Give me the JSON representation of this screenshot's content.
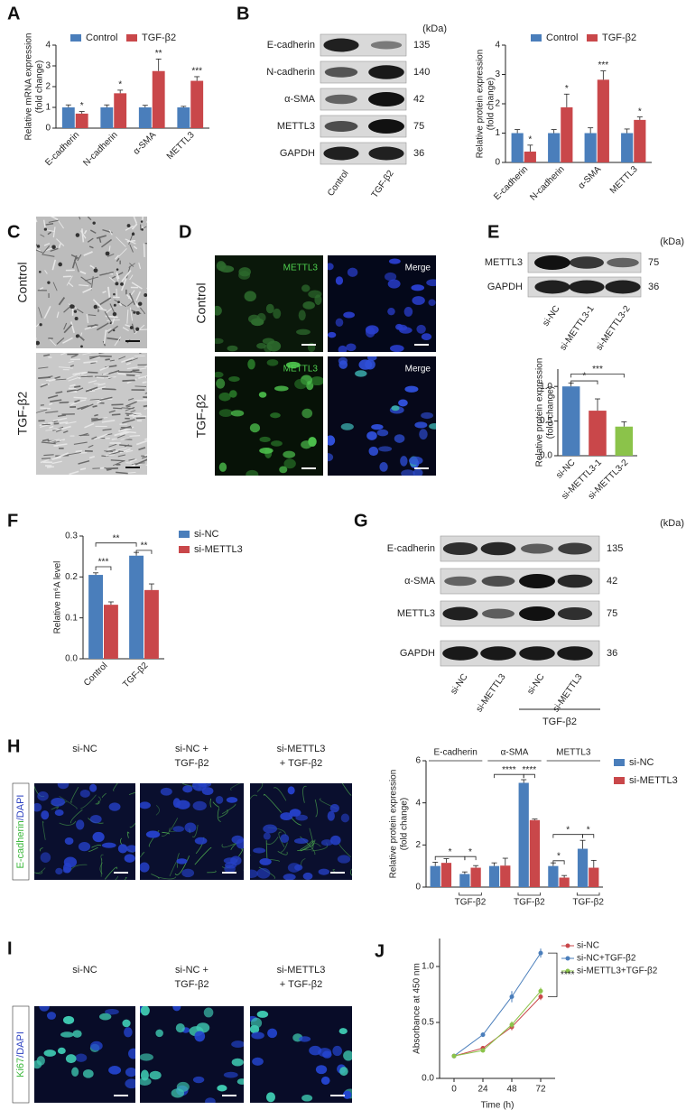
{
  "panels": {
    "letters": [
      "A",
      "B",
      "C",
      "D",
      "E",
      "F",
      "G",
      "H",
      "I",
      "J"
    ]
  },
  "blot_B": {
    "kda_unit": "(kDa)",
    "rows": [
      {
        "label": "E-cadherin",
        "kda": 135
      },
      {
        "label": "N-cadherin",
        "kda": 140
      },
      {
        "label": "α-SMA",
        "kda": 42
      },
      {
        "label": "METTL3",
        "kda": 75
      },
      {
        "label": "GAPDH",
        "kda": 36
      }
    ],
    "lanes": [
      "Control",
      "TGF-β2"
    ]
  },
  "images_C": {
    "rows": [
      "Control",
      "TGF-β2"
    ]
  },
  "images_D": {
    "channels": [
      "METTL3",
      "Merge"
    ],
    "rows": [
      "Control",
      "TGF-β2"
    ]
  },
  "blot_E": {
    "kda_unit": "(kDa)",
    "rows": [
      {
        "label": "METTL3",
        "kda": 75
      },
      {
        "label": "GAPDH",
        "kda": 36
      }
    ],
    "lanes": [
      "si-NC",
      "si-METTL3-1",
      "si-METTL3-2"
    ]
  },
  "blot_G": {
    "kda_unit": "(kDa)",
    "rows": [
      {
        "label": "E-cadherin",
        "kda": 135
      },
      {
        "label": "α-SMA",
        "kda": 42
      },
      {
        "label": "METTL3",
        "kda": 75
      },
      {
        "label": "GAPDH",
        "kda": 36
      }
    ],
    "lanes": [
      "si-NC",
      "si-METTL3",
      "si-NC",
      "si-METTL3"
    ],
    "group": "TGF-β2"
  },
  "images_H": {
    "columns": [
      [
        "si-NC"
      ],
      [
        "si-NC +",
        "TGF-β2"
      ],
      [
        "si-METTL3",
        "+ TGF-β2"
      ]
    ],
    "stain": [
      "E-cadherin",
      "/DAPI"
    ]
  },
  "images_I": {
    "columns": [
      [
        "si-NC"
      ],
      [
        "si-NC +",
        "TGF-β2"
      ],
      [
        "si-METTL3",
        "+ TGF-β2"
      ]
    ],
    "stain": [
      "Ki67",
      "/DAPI"
    ]
  },
  "chart_data": [
    {
      "type": "bar",
      "ylabel": [
        "Relative mRNA expression",
        "(fold change)"
      ],
      "categories": [
        "E-cadherin",
        "N-cadherin",
        "α-SMA",
        "METTL3"
      ],
      "series": [
        {
          "name": "Control",
          "color": "#4a7ebb",
          "values": [
            1,
            1,
            1,
            1
          ],
          "errors": [
            0.12,
            0.12,
            0.1,
            0.05
          ]
        },
        {
          "name": "TGF-β2",
          "color": "#c9474a",
          "values": [
            0.7,
            1.68,
            2.75,
            2.28
          ],
          "errors": [
            0.1,
            0.15,
            0.58,
            0.2
          ]
        }
      ],
      "significance": [
        "*",
        "*",
        "**",
        "***"
      ],
      "ylim": [
        0,
        4
      ],
      "yticks": [
        0,
        1,
        2,
        3,
        4
      ]
    },
    {
      "type": "bar",
      "ylabel": [
        "Relative protein expression",
        "(fold change)"
      ],
      "categories": [
        "E-cadherin",
        "N-cadherin",
        "α-SMA",
        "METTL3"
      ],
      "series": [
        {
          "name": "Control",
          "color": "#4a7ebb",
          "values": [
            1,
            1,
            1,
            1
          ],
          "errors": [
            0.12,
            0.12,
            0.18,
            0.14
          ]
        },
        {
          "name": "TGF-β2",
          "color": "#c9474a",
          "values": [
            0.37,
            1.88,
            2.82,
            1.45
          ],
          "errors": [
            0.22,
            0.45,
            0.3,
            0.1
          ]
        }
      ],
      "significance": [
        "*",
        "*",
        "***",
        "*"
      ],
      "ylim": [
        0,
        4
      ],
      "yticks": [
        0,
        1,
        2,
        3,
        4
      ]
    },
    {
      "type": "bar",
      "ylabel": [
        "Relative protein expression",
        "(fold change)"
      ],
      "categories": [
        "si-NC",
        "si-METTL3-1",
        "si-METTL3-2"
      ],
      "values": [
        1.0,
        0.65,
        0.42
      ],
      "errors": [
        0.05,
        0.17,
        0.07
      ],
      "colors": [
        "#4a7ebb",
        "#c9474a",
        "#8bc34a"
      ],
      "annotations": [
        "*",
        "***"
      ],
      "ylim": [
        0,
        1.25
      ],
      "yticks": [
        {
          "value": 0,
          "label": "0.0"
        },
        {
          "value": 0.5,
          "label": "0.5"
        },
        {
          "value": 1,
          "label": "1.0"
        }
      ]
    },
    {
      "type": "bar",
      "ylabel": [
        "Relative m⁶A level"
      ],
      "categories": [
        "Control",
        "TGF-β2"
      ],
      "series": [
        {
          "name": "si-NC",
          "color": "#4a7ebb",
          "values": [
            0.205,
            0.252
          ],
          "errors": [
            0.005,
            0.008
          ]
        },
        {
          "name": "si-METTL3",
          "color": "#c9474a",
          "values": [
            0.132,
            0.168
          ],
          "errors": [
            0.007,
            0.015
          ]
        }
      ],
      "annotations": [
        "***",
        "**",
        "**"
      ],
      "ylim": [
        0,
        0.3
      ],
      "yticks": [
        {
          "value": 0,
          "label": "0.0"
        },
        {
          "value": 0.1,
          "label": "0.1"
        },
        {
          "value": 0.2,
          "label": "0.2"
        },
        {
          "value": 0.3,
          "label": "0.3"
        }
      ]
    },
    {
      "type": "bar",
      "ylabel": [
        "Relative protein expression",
        "(fold change)"
      ],
      "categories": [
        null,
        "TGF-β2",
        null,
        "TGF-β2",
        null,
        "TGF-β2"
      ],
      "groups": [
        "E-cadherin",
        "α-SMA",
        "METTL3"
      ],
      "series": [
        {
          "name": "si-NC",
          "color": "#4a7ebb",
          "values": [
            1.0,
            0.62,
            1.0,
            4.95,
            1.0,
            1.82
          ],
          "errors": [
            0.18,
            0.1,
            0.15,
            0.15,
            0.15,
            0.4
          ]
        },
        {
          "name": "si-METTL3",
          "color": "#c9474a",
          "values": [
            1.15,
            0.92,
            1.02,
            3.18,
            0.45,
            0.92
          ],
          "errors": [
            0.2,
            0.1,
            0.35,
            0.05,
            0.1,
            0.35
          ]
        }
      ],
      "annotations": [
        "*",
        "*",
        "****",
        "****",
        "*",
        "*",
        "*"
      ],
      "ylim": [
        0,
        6
      ],
      "yticks": [
        0,
        2,
        4,
        6
      ]
    },
    {
      "type": "line",
      "xlabel": "Time (h)",
      "ylabel": [
        "Absorbance at 450 nm"
      ],
      "x": [
        0,
        24,
        48,
        72
      ],
      "xlim": [
        -12,
        84
      ],
      "xticks": [
        0,
        24,
        48,
        72
      ],
      "series": [
        {
          "name": "si-NC",
          "color": "#c9474a",
          "values": [
            0.2,
            0.27,
            0.46,
            0.73
          ],
          "errors": [
            0.01,
            0.02,
            0.03,
            0.03
          ]
        },
        {
          "name": "si-NC+TGF-β2",
          "color": "#4a7ebb",
          "values": [
            0.2,
            0.39,
            0.73,
            1.12
          ],
          "errors": [
            0.01,
            0.02,
            0.05,
            0.04
          ]
        },
        {
          "name": "si-METTL3+TGF-β2",
          "color": "#8bc34a",
          "values": [
            0.2,
            0.25,
            0.48,
            0.78
          ],
          "errors": [
            0.01,
            0.02,
            0.03,
            0.03
          ]
        }
      ],
      "annotations": [
        "****"
      ],
      "ylim": [
        0,
        1.25
      ],
      "yticks": [
        {
          "value": 0,
          "label": "0.0"
        },
        {
          "value": 0.5,
          "label": "0.5"
        },
        {
          "value": 1,
          "label": "1.0"
        }
      ]
    }
  ]
}
